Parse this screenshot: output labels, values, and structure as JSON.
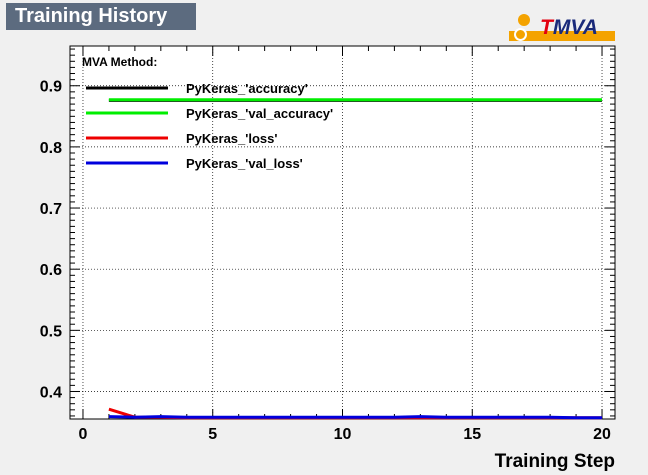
{
  "title": "Training History",
  "logo": {
    "prefix": "T",
    "rest": "MVA"
  },
  "chart_data": {
    "type": "line",
    "xlabel": "Training Step",
    "ylabel": "",
    "xlim": [
      -0.5,
      20.5
    ],
    "ylim": [
      0.355,
      0.965
    ],
    "xticks": [
      0,
      5,
      10,
      15,
      20
    ],
    "yticks": [
      0.4,
      0.5,
      0.6,
      0.7,
      0.8,
      0.9
    ],
    "grid": true,
    "legend": {
      "title": "MVA Method:",
      "placement": "top-left",
      "entries": [
        "PyKeras_'accuracy'",
        "PyKeras_'val_accuracy'",
        "PyKeras_'loss'",
        "PyKeras_'val_loss'"
      ]
    },
    "series": [
      {
        "name": "PyKeras_'accuracy'",
        "color": "#000000",
        "x": [
          1,
          2,
          3,
          4,
          5,
          6,
          7,
          8,
          9,
          10,
          11,
          12,
          13,
          14,
          15,
          16,
          17,
          18,
          19,
          20
        ],
        "y": [
          0.876,
          0.876,
          0.876,
          0.876,
          0.876,
          0.876,
          0.876,
          0.876,
          0.876,
          0.876,
          0.876,
          0.876,
          0.876,
          0.876,
          0.876,
          0.876,
          0.876,
          0.876,
          0.876,
          0.876
        ]
      },
      {
        "name": "PyKeras_'val_accuracy'",
        "color": "#00ee00",
        "x": [
          1,
          2,
          3,
          4,
          5,
          6,
          7,
          8,
          9,
          10,
          11,
          12,
          13,
          14,
          15,
          16,
          17,
          18,
          19,
          20
        ],
        "y": [
          0.877,
          0.877,
          0.877,
          0.877,
          0.877,
          0.877,
          0.877,
          0.877,
          0.877,
          0.877,
          0.877,
          0.877,
          0.877,
          0.877,
          0.877,
          0.877,
          0.877,
          0.877,
          0.877,
          0.877
        ]
      },
      {
        "name": "PyKeras_'loss'",
        "color": "#ee0000",
        "x": [
          1,
          2,
          3,
          4,
          5,
          6,
          7,
          8,
          9,
          10,
          11,
          12,
          13,
          14,
          15,
          16,
          17,
          18,
          19,
          20
        ],
        "y": [
          0.371,
          0.358,
          0.358,
          0.357,
          0.357,
          0.357,
          0.357,
          0.357,
          0.357,
          0.357,
          0.357,
          0.357,
          0.357,
          0.357,
          0.357,
          0.357,
          0.357,
          0.357,
          0.357,
          0.357
        ]
      },
      {
        "name": "PyKeras_'val_loss'",
        "color": "#0000dd",
        "x": [
          1,
          2,
          3,
          4,
          5,
          6,
          7,
          8,
          9,
          10,
          11,
          12,
          13,
          14,
          15,
          16,
          17,
          18,
          19,
          20
        ],
        "y": [
          0.359,
          0.358,
          0.359,
          0.358,
          0.358,
          0.358,
          0.358,
          0.358,
          0.358,
          0.358,
          0.358,
          0.358,
          0.359,
          0.358,
          0.358,
          0.358,
          0.358,
          0.358,
          0.357,
          0.357
        ]
      }
    ]
  }
}
